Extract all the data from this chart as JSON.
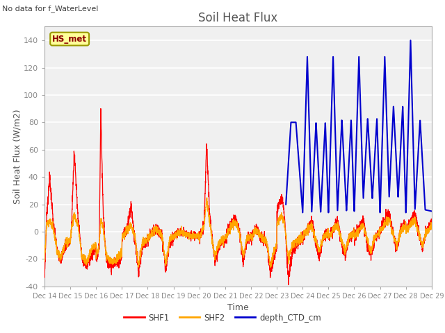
{
  "title": "Soil Heat Flux",
  "subtitle": "No data for f_WaterLevel",
  "xlabel": "Time",
  "ylabel": "Soil Heat Flux (W/m2)",
  "ylim": [
    -40,
    150
  ],
  "yticks": [
    -40,
    -20,
    0,
    20,
    40,
    60,
    80,
    100,
    120,
    140
  ],
  "xtick_labels": [
    "Dec 14",
    "Dec 15",
    "Dec 16",
    "Dec 17",
    "Dec 18",
    "Dec 19",
    "Dec 20",
    "Dec 21",
    "Dec 22",
    "Dec 23",
    "Dec 24",
    "Dec 25",
    "Dec 26",
    "Dec 27",
    "Dec 28",
    "Dec 29"
  ],
  "legend_label_box": "HS_met",
  "color_SHF1": "#ff0000",
  "color_SHF2": "#ffa500",
  "color_depth": "#0000cd",
  "fig_bg": "#ffffff",
  "plot_bg": "#f0f0f0",
  "grid_color": "#ffffff",
  "title_color": "#555555",
  "axis_label_color": "#555555",
  "tick_color": "#888888",
  "label_box_text": "#8b0000",
  "label_box_bg": "#ffff99",
  "label_box_edge": "#999900"
}
